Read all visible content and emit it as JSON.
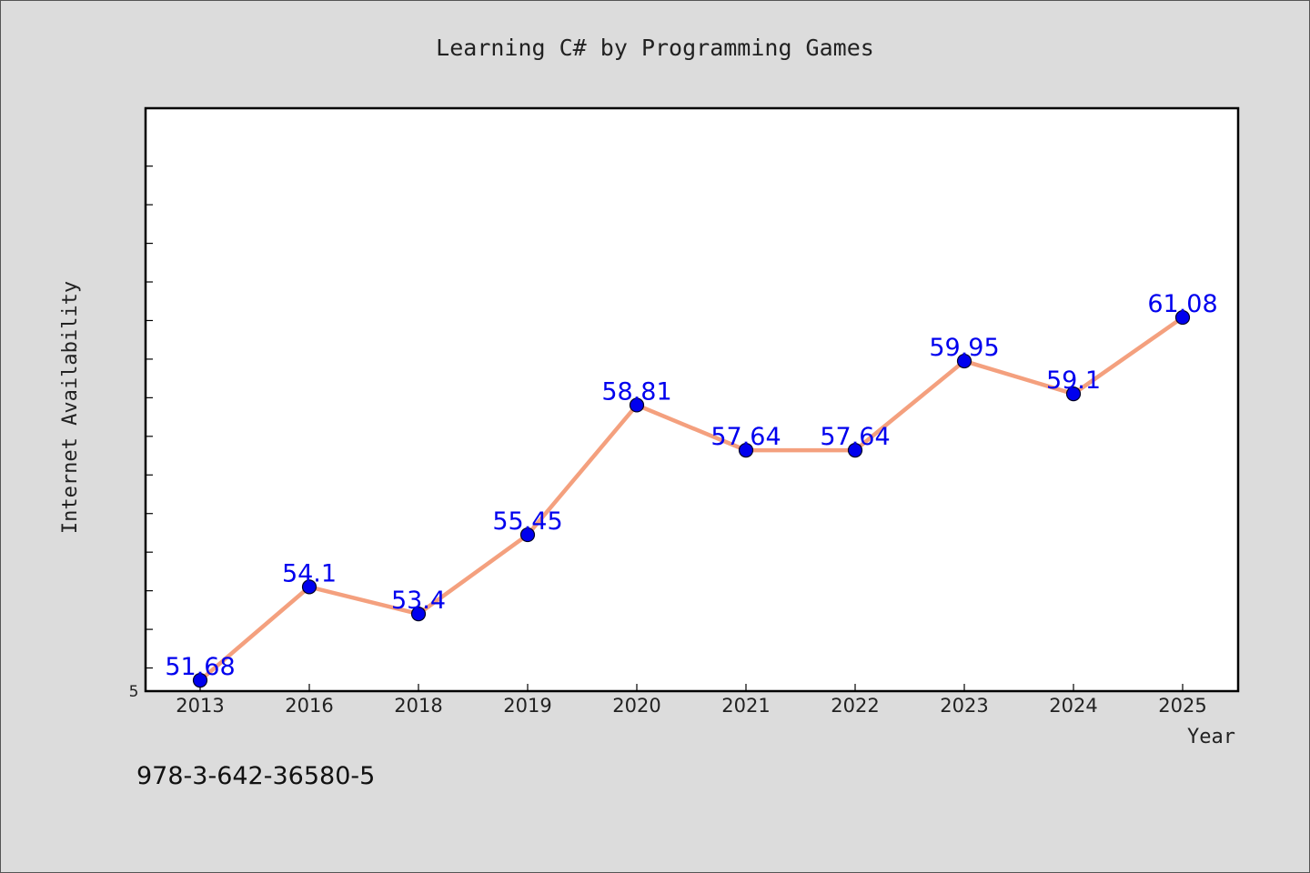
{
  "chart_data": {
    "type": "line",
    "title": "Learning C# by Programming Games",
    "xlabel": "Year",
    "ylabel": "Internet Availability",
    "categories": [
      "2013",
      "2016",
      "2018",
      "2019",
      "2020",
      "2021",
      "2022",
      "2023",
      "2024",
      "2025"
    ],
    "values": [
      51.68,
      54.1,
      53.4,
      55.45,
      58.81,
      57.64,
      57.64,
      59.95,
      59.1,
      61.08
    ],
    "data_labels": [
      "51.68",
      "54.1",
      "53.4",
      "55.45",
      "58.81",
      "57.64",
      "57.64",
      "59.95",
      "59.1",
      "61.08"
    ],
    "ylim": [
      51.4,
      66.5
    ],
    "y_tick_label": "5",
    "y_minor_tick_step": 1,
    "grid": false,
    "line_color": "#f4a07e",
    "marker_color": "#0000ee",
    "label_color": "#0000ee"
  },
  "footer": {
    "isbn": "978-3-642-36580-5"
  }
}
